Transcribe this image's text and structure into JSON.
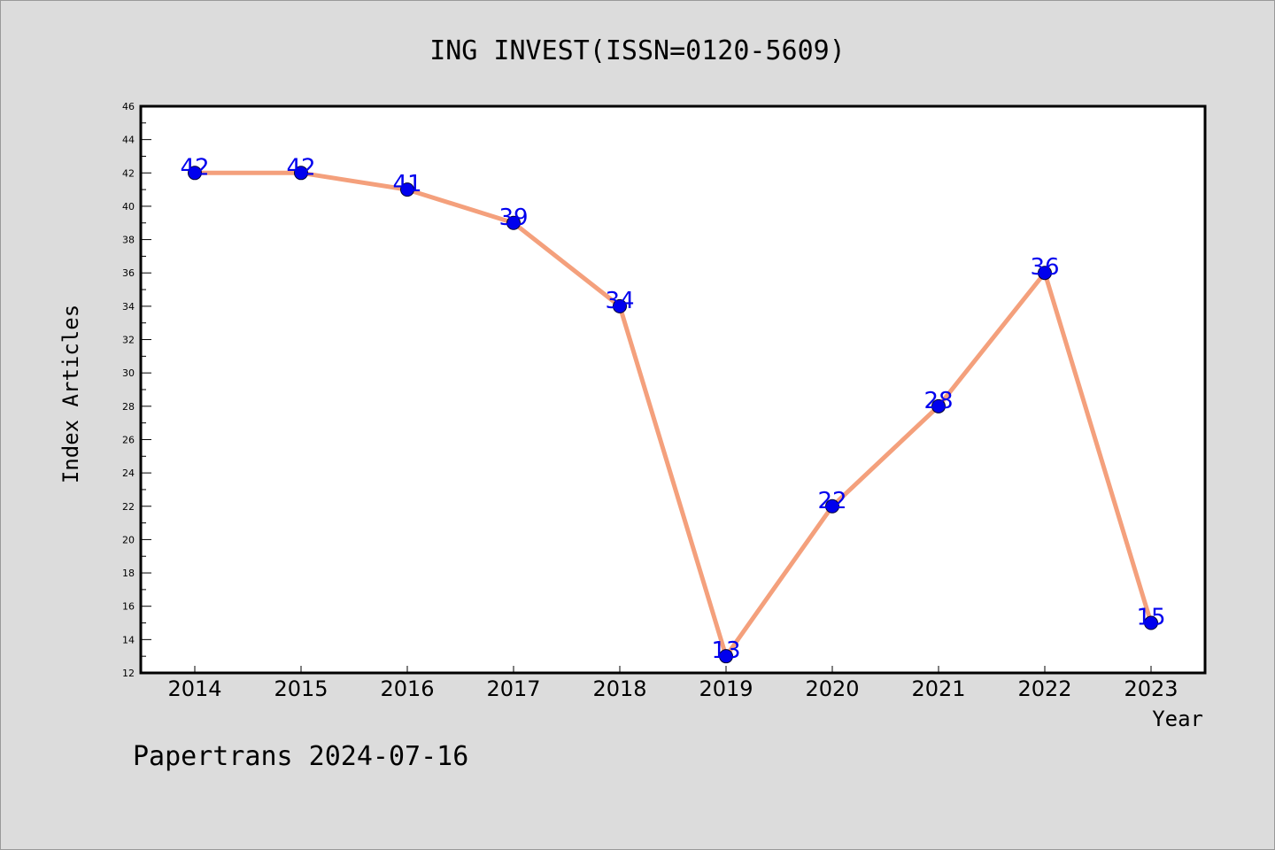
{
  "chart_data": {
    "type": "line",
    "title": "ING INVEST(ISSN=0120-5609)",
    "xlabel": "Year",
    "ylabel": "Index Articles",
    "categories": [
      "2014",
      "2015",
      "2016",
      "2017",
      "2018",
      "2019",
      "2020",
      "2021",
      "2022",
      "2023"
    ],
    "series": [
      {
        "values": [
          42,
          42,
          41,
          39,
          34,
          13,
          22,
          28,
          36,
          15
        ]
      }
    ],
    "ylim": [
      12,
      46
    ],
    "yticks": [
      "12",
      "14",
      "16",
      "18",
      "20",
      "22",
      "24",
      "26",
      "28",
      "30",
      "32",
      "34",
      "36",
      "38",
      "40",
      "42",
      "44",
      "46"
    ],
    "grid": false,
    "line_color": "#f4a07c",
    "marker_color": "#0000ee",
    "label_color": "#0000ee"
  },
  "footer": "Papertrans 2024-07-16"
}
